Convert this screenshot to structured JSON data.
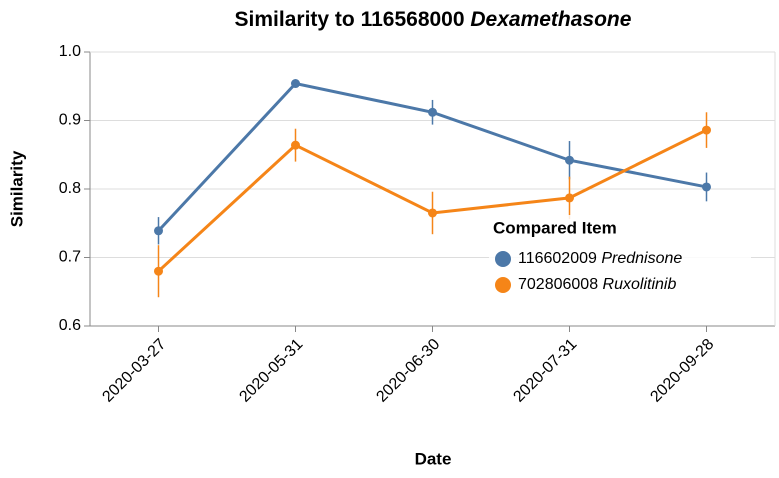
{
  "chart_data": {
    "type": "line",
    "title": "Similarity to 116568000 Dexamethasone",
    "x_label": "Date",
    "y_label": "Similarity",
    "legend_title": "Compared Item",
    "legend_position": "right",
    "categories": [
      "2020-03-27",
      "2020-05-31",
      "2020-06-30",
      "2020-07-31",
      "2020-09-28"
    ],
    "series": [
      {
        "name": "116602009 Prednisone",
        "color": "#4c78a8",
        "values": [
          0.739,
          0.954,
          0.912,
          0.842,
          0.803
        ],
        "errors": [
          0.02,
          0.005,
          0.018,
          0.028,
          0.021
        ]
      },
      {
        "name": "702806008 Ruxolitinib",
        "color": "#f58518",
        "values": [
          0.68,
          0.864,
          0.765,
          0.787,
          0.886
        ],
        "errors": [
          0.038,
          0.024,
          0.031,
          0.031,
          0.026
        ]
      }
    ],
    "ylim": [
      0.6,
      1.0
    ],
    "yticks": [
      {
        "value": 0.6,
        "label": "0.6"
      },
      {
        "value": 0.7,
        "label": "0.7"
      },
      {
        "value": 0.8,
        "label": "0.8"
      },
      {
        "value": 0.9,
        "label": "0.9"
      },
      {
        "value": 1.0,
        "label": "1.0"
      }
    ],
    "grid": true
  }
}
